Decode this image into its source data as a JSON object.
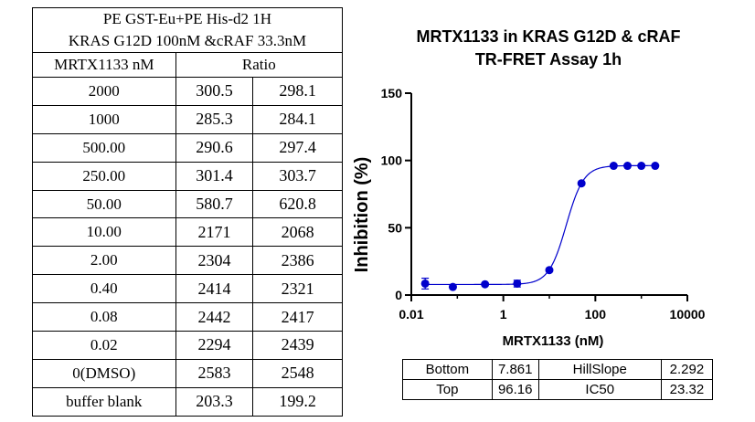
{
  "table": {
    "title_line1": "PE GST-Eu+PE His-d2 1H",
    "title_line2": "KRAS G12D 100nM &cRAF 33.3nM",
    "col_conc_header": "MRTX1133 nM",
    "col_ratio_header": "Ratio",
    "rows": [
      {
        "conc": "2000",
        "r1": "300.5",
        "r2": "298.1"
      },
      {
        "conc": "1000",
        "r1": "285.3",
        "r2": "284.1"
      },
      {
        "conc": "500.00",
        "r1": "290.6",
        "r2": "297.4"
      },
      {
        "conc": "250.00",
        "r1": "301.4",
        "r2": "303.7"
      },
      {
        "conc": "50.00",
        "r1": "580.7",
        "r2": "620.8"
      },
      {
        "conc": "10.00",
        "r1": "2171",
        "r2": "2068"
      },
      {
        "conc": "2.00",
        "r1": "2304",
        "r2": "2386"
      },
      {
        "conc": "0.40",
        "r1": "2414",
        "r2": "2321"
      },
      {
        "conc": "0.08",
        "r1": "2442",
        "r2": "2417"
      },
      {
        "conc": "0.02",
        "r1": "2294",
        "r2": "2439"
      },
      {
        "conc": "0(DMSO)",
        "r1": "2583",
        "r2": "2548"
      },
      {
        "conc": "buffer blank",
        "r1": "203.3",
        "r2": "199.2"
      }
    ]
  },
  "chart_data": {
    "type": "scatter",
    "title": "MRTX1133 in KRAS G12D & cRAF\nTR-FRET Assay 1h",
    "title_line1": "MRTX1133 in KRAS G12D & cRAF",
    "title_line2": "TR-FRET Assay 1h",
    "xlabel": "MRTX1133 (nM)",
    "ylabel": "Inhibition (%)",
    "xscale": "log",
    "xlim": [
      0.01,
      10000
    ],
    "ylim": [
      0,
      150
    ],
    "xticks": [
      0.01,
      1,
      100,
      10000
    ],
    "xtick_labels": [
      "0.01",
      "1",
      "100",
      "10000"
    ],
    "yticks": [
      0,
      50,
      100,
      150
    ],
    "ytick_labels": [
      "0",
      "50",
      "100",
      "150"
    ],
    "series": [
      {
        "name": "Inhibition",
        "x": [
          0.02,
          0.08,
          0.4,
          2,
          10,
          50,
          250,
          500,
          1000,
          2000
        ],
        "y": [
          8.5,
          6.0,
          8.0,
          8.5,
          18.5,
          83.0,
          96.0,
          96.0,
          96.0,
          96.0
        ],
        "err": [
          4.0,
          0,
          0,
          2.5,
          0,
          0,
          0,
          0,
          0,
          0
        ]
      }
    ],
    "fit": {
      "model": "4PL",
      "bottom": 7.861,
      "top": 96.16,
      "hillslope": 2.292,
      "ic50": 23.32
    },
    "color": "#0000cc"
  },
  "fit_params": {
    "bottom_label": "Bottom",
    "bottom_value": "7.861",
    "hillslope_label": "HillSlope",
    "hillslope_value": "2.292",
    "top_label": "Top",
    "top_value": "96.16",
    "ic50_label": "IC50",
    "ic50_value": "23.32"
  }
}
